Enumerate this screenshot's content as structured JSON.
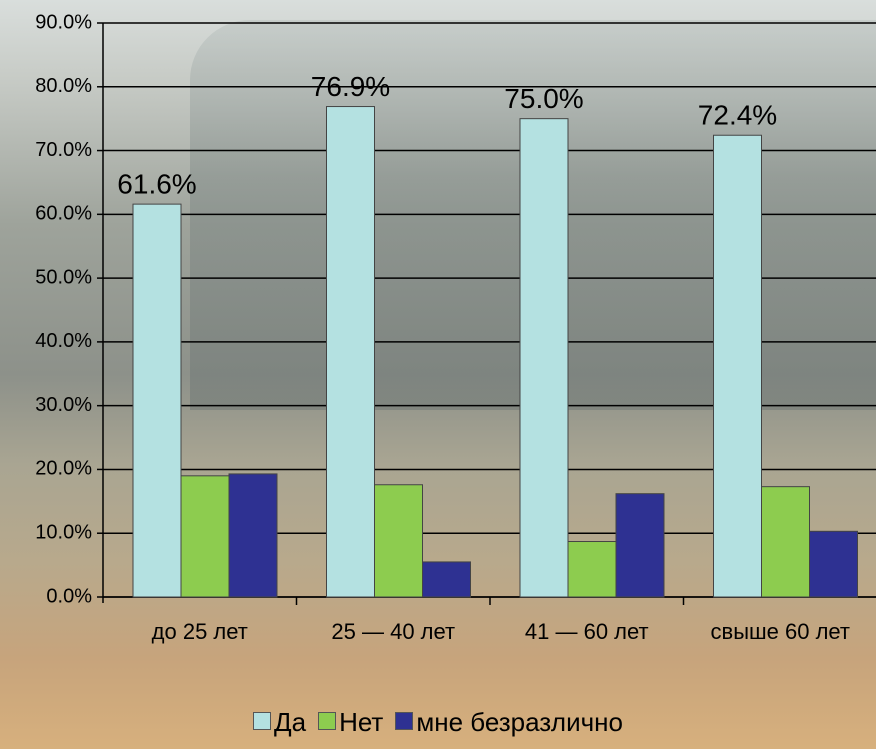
{
  "chart_data": {
    "type": "bar",
    "categories": [
      "до 25 лет",
      "25 — 40 лет",
      "41 — 60 лет",
      "свыше 60 лет"
    ],
    "series": [
      {
        "name": "Да",
        "color": "#b4e1e1",
        "values": [
          61.6,
          76.9,
          75.0,
          72.4
        ],
        "value_labels": [
          "61.6%",
          "76.9%",
          "75.0%",
          "72.4%"
        ]
      },
      {
        "name": "Нет",
        "color": "#8dcc4f",
        "values": [
          19.0,
          17.6,
          8.7,
          17.3
        ]
      },
      {
        "name": "мне безразлично",
        "color": "#2e3192",
        "values": [
          19.3,
          5.5,
          16.2,
          10.3
        ]
      }
    ],
    "ylim": [
      0,
      90
    ],
    "yticks": [
      {
        "value": 0,
        "label": "0.0%"
      },
      {
        "value": 10,
        "label": "10.0%"
      },
      {
        "value": 20,
        "label": "20.0%"
      },
      {
        "value": 30,
        "label": "30.0%"
      },
      {
        "value": 40,
        "label": "40.0%"
      },
      {
        "value": 50,
        "label": "50.0%"
      },
      {
        "value": 60,
        "label": "60.0%"
      },
      {
        "value": 70,
        "label": "70.0%"
      },
      {
        "value": 80,
        "label": "80.0%"
      },
      {
        "value": 90,
        "label": "90.0%"
      }
    ],
    "grid": true,
    "legend": "bottom"
  }
}
